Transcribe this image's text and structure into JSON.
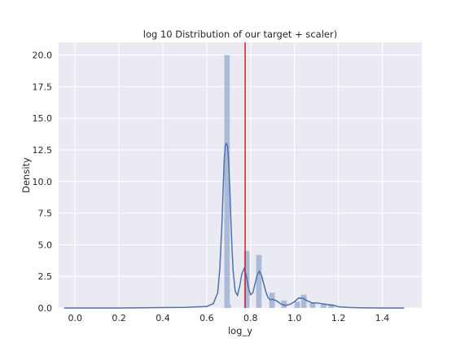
{
  "chart_data": {
    "type": "histogram+kde",
    "title": "log 10 Distribution of our target + scaler)",
    "xlabel": "log_y",
    "ylabel": "Density",
    "xlim": [
      -0.075,
      1.58
    ],
    "ylim": [
      0,
      21.0
    ],
    "xticks": [
      "0.0",
      "0.2",
      "0.4",
      "0.6",
      "0.8",
      "1.0",
      "1.2",
      "1.4"
    ],
    "xtick_values": [
      0.0,
      0.2,
      0.4,
      0.6,
      0.8,
      1.0,
      1.2,
      1.4
    ],
    "yticks": [
      "0.0",
      "2.5",
      "5.0",
      "7.5",
      "10.0",
      "12.5",
      "15.0",
      "17.5",
      "20.0"
    ],
    "ytick_values": [
      0.0,
      2.5,
      5.0,
      7.5,
      10.0,
      12.5,
      15.0,
      17.5,
      20.0
    ],
    "grid": true,
    "histogram": {
      "color": "#4c72b0",
      "opacity": 0.4,
      "bins": [
        {
          "x0": 0.68,
          "x1": 0.705,
          "density": 20.0
        },
        {
          "x0": 0.705,
          "x1": 0.71,
          "density": 0.3
        },
        {
          "x0": 0.77,
          "x1": 0.795,
          "density": 4.5
        },
        {
          "x0": 0.825,
          "x1": 0.85,
          "density": 4.2
        },
        {
          "x0": 0.885,
          "x1": 0.91,
          "density": 1.2
        },
        {
          "x0": 0.94,
          "x1": 0.965,
          "density": 0.6
        },
        {
          "x0": 1.0,
          "x1": 1.025,
          "density": 0.5
        },
        {
          "x0": 1.03,
          "x1": 1.055,
          "density": 1.05
        },
        {
          "x0": 1.07,
          "x1": 1.095,
          "density": 0.4
        },
        {
          "x0": 1.12,
          "x1": 1.145,
          "density": 0.35
        },
        {
          "x0": 1.155,
          "x1": 1.18,
          "density": 0.3
        }
      ]
    },
    "kde": {
      "color": "#4c72b0",
      "x": [
        -0.05,
        0.0,
        0.2,
        0.4,
        0.5,
        0.6,
        0.63,
        0.65,
        0.66,
        0.67,
        0.675,
        0.68,
        0.685,
        0.69,
        0.695,
        0.7,
        0.705,
        0.71,
        0.715,
        0.72,
        0.73,
        0.74,
        0.75,
        0.76,
        0.77,
        0.78,
        0.79,
        0.8,
        0.81,
        0.82,
        0.83,
        0.84,
        0.85,
        0.86,
        0.87,
        0.88,
        0.89,
        0.9,
        0.92,
        0.94,
        0.96,
        0.98,
        1.0,
        1.02,
        1.04,
        1.06,
        1.08,
        1.1,
        1.12,
        1.14,
        1.16,
        1.18,
        1.2,
        1.25,
        1.3,
        1.4,
        1.5
      ],
      "y": [
        0.0,
        0.0,
        0.0,
        0.03,
        0.05,
        0.12,
        0.35,
        1.2,
        3.2,
        7.0,
        9.5,
        11.8,
        12.9,
        13.0,
        12.8,
        11.5,
        9.5,
        7.0,
        4.8,
        3.0,
        1.3,
        1.0,
        1.7,
        2.7,
        3.1,
        2.6,
        1.6,
        1.05,
        1.2,
        1.9,
        2.6,
        2.9,
        2.55,
        1.9,
        1.25,
        0.8,
        0.65,
        0.7,
        0.55,
        0.3,
        0.2,
        0.3,
        0.5,
        0.8,
        0.75,
        0.55,
        0.4,
        0.4,
        0.35,
        0.3,
        0.25,
        0.2,
        0.1,
        0.04,
        0.02,
        0.0,
        0.0
      ]
    },
    "vline": {
      "x": 0.775,
      "color": "#e31a1c"
    }
  }
}
